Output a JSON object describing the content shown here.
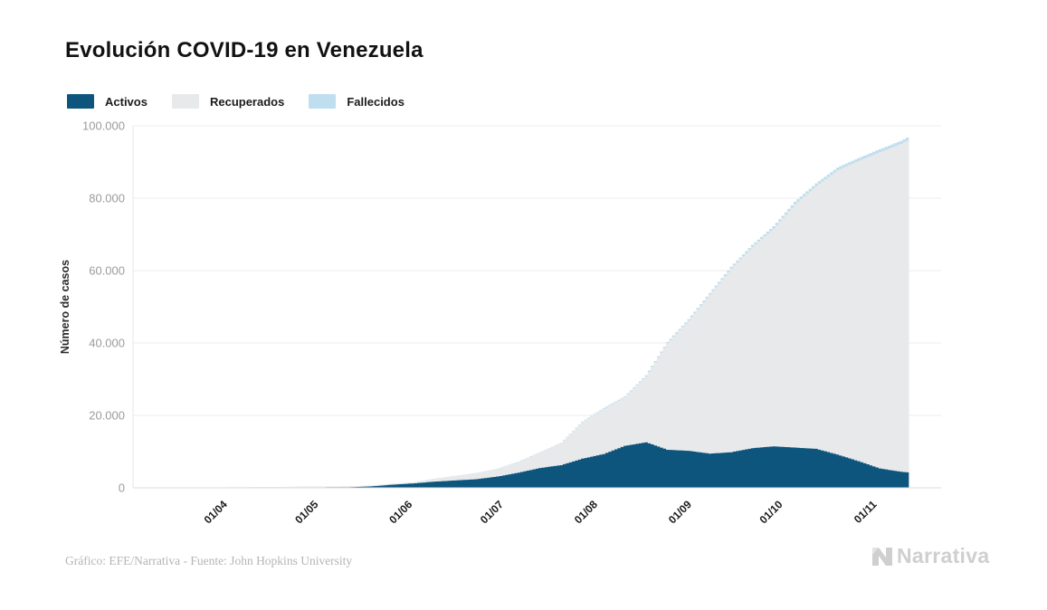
{
  "title": "Evolución COVID-19 en Venezuela",
  "legend": {
    "items": [
      {
        "label": "Activos",
        "color": "#0e557d"
      },
      {
        "label": "Recuperados",
        "color": "#e8e9ea"
      },
      {
        "label": "Fallecidos",
        "color": "#bfdff0"
      }
    ]
  },
  "footer": {
    "credit": "Gráfico: EFE/Narrativa - Fuente: John Hopkins University",
    "logo_text": "Narrativa"
  },
  "chart_data": {
    "type": "area",
    "stacked": true,
    "title": "Evolución COVID-19 en Venezuela",
    "ylabel": "Número de casos",
    "ylim": [
      0,
      100000
    ],
    "grid": true,
    "legend_position": "top-left",
    "y_ticks": [
      0,
      20000,
      40000,
      60000,
      80000,
      100000
    ],
    "y_tick_labels": [
      "0",
      "20.000",
      "40.000",
      "60.000",
      "80.000",
      "100.000"
    ],
    "x_tick_labels": [
      "01/04",
      "01/05",
      "01/06",
      "01/07",
      "01/08",
      "01/09",
      "01/10",
      "01/11"
    ],
    "x_tick_days": [
      16,
      46,
      77,
      107,
      138,
      169,
      199,
      230
    ],
    "start_date": "2020-03-16",
    "end_date": "2020-11-11",
    "days": [
      0,
      7,
      14,
      21,
      28,
      35,
      42,
      49,
      56,
      63,
      70,
      77,
      84,
      91,
      98,
      105,
      112,
      119,
      126,
      133,
      140,
      147,
      154,
      161,
      168,
      175,
      182,
      189,
      196,
      203,
      210,
      217,
      224,
      231,
      238,
      240
    ],
    "series_order_bottom_to_top": [
      "Activos",
      "Recuperados",
      "Fallecidos"
    ],
    "series": [
      {
        "name": "Activos",
        "color": "#0e557d",
        "values": [
          33,
          70,
          92,
          106,
          110,
          130,
          119,
          144,
          167,
          360,
          836,
          1194,
          1690,
          2041,
          2372,
          3109,
          4192,
          5464,
          6266,
          8049,
          9328,
          11590,
          12576,
          10514,
          10222,
          9436,
          9823,
          10950,
          11451,
          11113,
          10773,
          9179,
          7345,
          5345,
          4430,
          4279
        ]
      },
      {
        "name": "Recuperados",
        "color": "#e8e9ea",
        "values": [
          0,
          15,
          39,
          52,
          71,
          117,
          200,
          203,
          245,
          248,
          275,
          302,
          760,
          1217,
          1667,
          2115,
          3037,
          4268,
          6062,
          10093,
          12502,
          13465,
          18219,
          29451,
          35984,
          43951,
          50738,
          55600,
          60197,
          67230,
          72599,
          78516,
          82965,
          87368,
          90577,
          91623
        ]
      },
      {
        "name": "Fallecidos",
        "color": "#bfdff0",
        "values": [
          0,
          0,
          3,
          9,
          9,
          10,
          10,
          10,
          10,
          10,
          10,
          14,
          27,
          32,
          41,
          51,
          65,
          85,
          112,
          150,
          201,
          234,
          293,
          331,
          381,
          438,
          487,
          543,
          592,
          664,
          709,
          754,
          784,
          810,
          832,
          838
        ]
      }
    ]
  }
}
